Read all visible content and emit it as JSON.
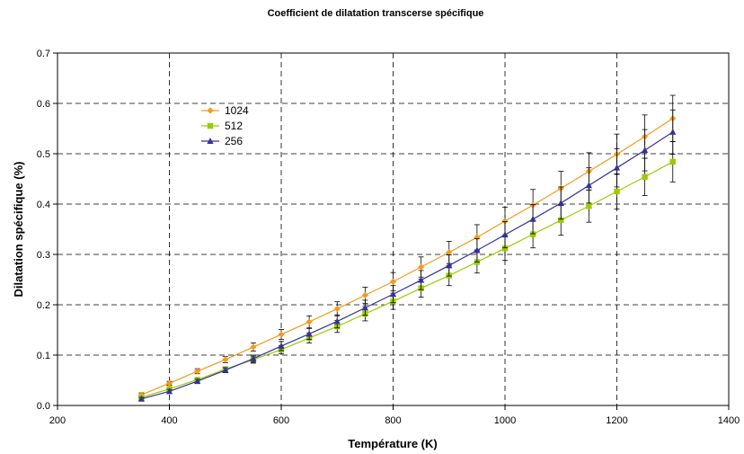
{
  "chart_data": {
    "type": "line",
    "title": "Coefficient de dilatation transcerse spécifique",
    "xlabel": "Température (K)",
    "ylabel": "Dilatation spécifique (%)",
    "xlim": [
      200,
      1400
    ],
    "ylim": [
      0,
      0.7
    ],
    "xticks": [
      "200",
      "400",
      "600",
      "800",
      "1000",
      "1200",
      "1400"
    ],
    "yticks": [
      "0.0",
      "0.1",
      "0.2",
      "0.3",
      "0.4",
      "0.5",
      "0.6",
      "0.7"
    ],
    "grid": true,
    "legend": "upper-left",
    "x": [
      350,
      400,
      450,
      500,
      550,
      600,
      650,
      700,
      750,
      800,
      850,
      900,
      950,
      1000,
      1050,
      1100,
      1150,
      1200,
      1250,
      1300
    ],
    "series": [
      {
        "name": "1024",
        "color": "#F39A1E",
        "marker": "diamond",
        "values": [
          0.021,
          0.044,
          0.068,
          0.091,
          0.116,
          0.141,
          0.166,
          0.192,
          0.219,
          0.246,
          0.275,
          0.304,
          0.334,
          0.366,
          0.398,
          0.431,
          0.465,
          0.499,
          0.534,
          0.57
        ],
        "errors": [
          0.004,
          0.004,
          0.005,
          0.006,
          0.008,
          0.01,
          0.012,
          0.014,
          0.016,
          0.018,
          0.02,
          0.022,
          0.025,
          0.028,
          0.031,
          0.034,
          0.037,
          0.04,
          0.043,
          0.046
        ]
      },
      {
        "name": "512",
        "color": "#99CC00",
        "marker": "square",
        "values": [
          0.016,
          0.033,
          0.051,
          0.072,
          0.091,
          0.111,
          0.134,
          0.157,
          0.182,
          0.207,
          0.233,
          0.258,
          0.285,
          0.312,
          0.34,
          0.368,
          0.396,
          0.425,
          0.454,
          0.484
        ],
        "errors": [
          0.003,
          0.004,
          0.004,
          0.005,
          0.007,
          0.008,
          0.01,
          0.012,
          0.014,
          0.016,
          0.018,
          0.02,
          0.022,
          0.024,
          0.027,
          0.03,
          0.032,
          0.035,
          0.037,
          0.04
        ]
      },
      {
        "name": "256",
        "color": "#333399",
        "marker": "triangle",
        "values": [
          0.013,
          0.028,
          0.048,
          0.07,
          0.093,
          0.118,
          0.142,
          0.167,
          0.194,
          0.221,
          0.249,
          0.278,
          0.308,
          0.339,
          0.37,
          0.402,
          0.437,
          0.472,
          0.507,
          0.543
        ],
        "errors": [
          0.003,
          0.004,
          0.004,
          0.005,
          0.007,
          0.009,
          0.011,
          0.013,
          0.015,
          0.017,
          0.019,
          0.021,
          0.023,
          0.026,
          0.029,
          0.032,
          0.035,
          0.038,
          0.041,
          0.044
        ]
      }
    ]
  }
}
